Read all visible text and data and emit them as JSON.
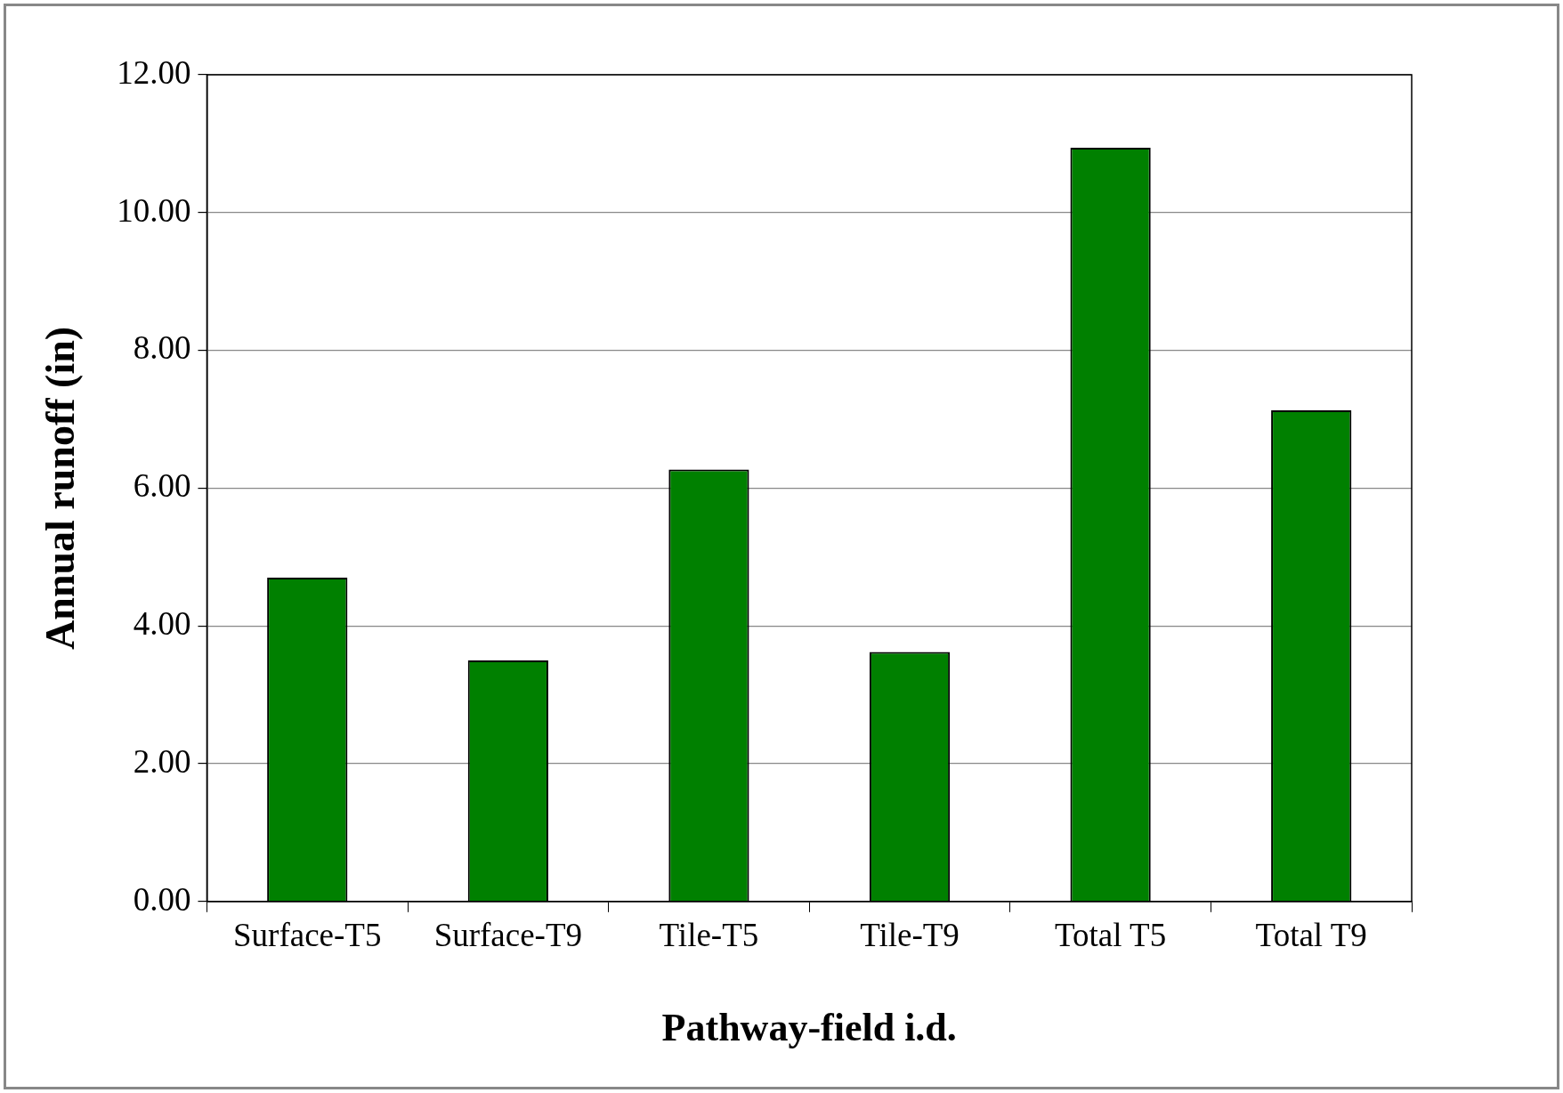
{
  "chart_data": {
    "type": "bar",
    "xlabel": "Pathway-field i.d.",
    "ylabel": "Annual runoff (in)",
    "categories": [
      "Surface-T5",
      "Surface-T9",
      "Tile-T5",
      "Tile-T9",
      "Total T5",
      "Total T9"
    ],
    "values": [
      4.7,
      3.5,
      6.27,
      3.62,
      10.94,
      7.13
    ],
    "color": "#008000",
    "ylim": [
      0,
      12
    ],
    "yticks": [
      {
        "value": 0,
        "label": "0.00"
      },
      {
        "value": 2,
        "label": "2.00"
      },
      {
        "value": 4,
        "label": "4.00"
      },
      {
        "value": 6,
        "label": "6.00"
      },
      {
        "value": 8,
        "label": "8.00"
      },
      {
        "value": 10,
        "label": "10.00"
      },
      {
        "value": 12,
        "label": "12.00"
      }
    ],
    "grid": "y"
  }
}
